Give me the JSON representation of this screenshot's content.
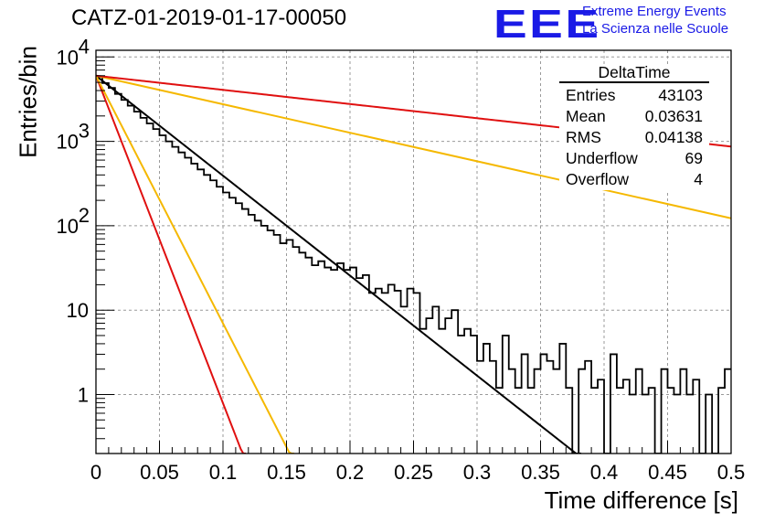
{
  "header": {
    "title": "CATZ-01-2019-01-17-00050",
    "logo_text": "EEE",
    "brand_line1": "Extreme Energy Events",
    "brand_line2": "La Scienza nelle Scuole",
    "brand_color": "#1a1ae6"
  },
  "stats_box": {
    "name": "DeltaTime",
    "rows": [
      {
        "label": "Entries",
        "value": "43103"
      },
      {
        "label": "Mean",
        "value": "0.03631"
      },
      {
        "label": "RMS",
        "value": "0.04138"
      },
      {
        "label": "Underflow",
        "value": "69"
      },
      {
        "label": "Overflow",
        "value": "4"
      }
    ]
  },
  "chart_data": {
    "type": "line",
    "xlabel": "Time difference [s]",
    "ylabel": "Entries/bin",
    "xlim": [
      0,
      0.5
    ],
    "ylim": [
      0.2,
      12000
    ],
    "y_scale": "log",
    "grid": true,
    "x_ticks": [
      "0",
      "0.05",
      "0.1",
      "0.15",
      "0.2",
      "0.25",
      "0.3",
      "0.35",
      "0.4",
      "0.45",
      "0.5"
    ],
    "x_tick_values": [
      0,
      0.05,
      0.1,
      0.15,
      0.2,
      0.25,
      0.3,
      0.35,
      0.4,
      0.45,
      0.5
    ],
    "y_ticks": [
      {
        "value": 1,
        "base": "1",
        "exp": ""
      },
      {
        "value": 10,
        "base": "10",
        "exp": ""
      },
      {
        "value": 100,
        "base": "10",
        "exp": "2"
      },
      {
        "value": 1000,
        "base": "10",
        "exp": "3"
      },
      {
        "value": 10000,
        "base": "10",
        "exp": "4"
      }
    ],
    "series": [
      {
        "kind": "histogram",
        "color": "#000000",
        "bin_width": 0.005,
        "values": [
          5800,
          4900,
          4300,
          3650,
          3100,
          2650,
          2250,
          1900,
          1630,
          1400,
          1180,
          1000,
          860,
          740,
          640,
          545,
          465,
          400,
          345,
          290,
          248,
          215,
          185,
          158,
          135,
          115,
          100,
          88,
          78,
          62,
          68,
          56,
          48,
          42,
          34,
          38,
          32,
          30,
          36,
          30,
          32,
          24,
          26,
          16,
          18,
          16,
          20,
          17,
          11,
          18,
          16,
          6,
          8,
          11,
          6,
          8,
          10,
          5,
          6,
          5,
          2.5,
          4,
          2.5,
          1.2,
          5,
          2,
          1.2,
          3,
          1.2,
          2,
          3,
          2.5,
          2,
          4,
          1.2,
          0.2,
          2,
          2.5,
          1.2,
          1.5,
          0.2,
          3,
          1.2,
          1.5,
          1,
          2,
          1,
          1.2,
          0.2,
          2,
          1.2,
          1,
          2,
          1,
          1.5,
          0.2,
          1,
          0.2,
          1.2,
          2
        ]
      },
      {
        "kind": "fit",
        "color": "#000000",
        "y0": 6000,
        "tau": 0.03666
      },
      {
        "kind": "fit",
        "color": "#e01010",
        "y0": 6000,
        "tau": 0.01119
      },
      {
        "kind": "fit",
        "color": "#f5b800",
        "y0": 6000,
        "tau": 0.0148
      },
      {
        "kind": "fit",
        "color": "#f5b800",
        "y0": 6000,
        "tau": 0.1285
      },
      {
        "kind": "fit",
        "color": "#e01010",
        "y0": 6000,
        "tau": 0.2587
      }
    ]
  }
}
